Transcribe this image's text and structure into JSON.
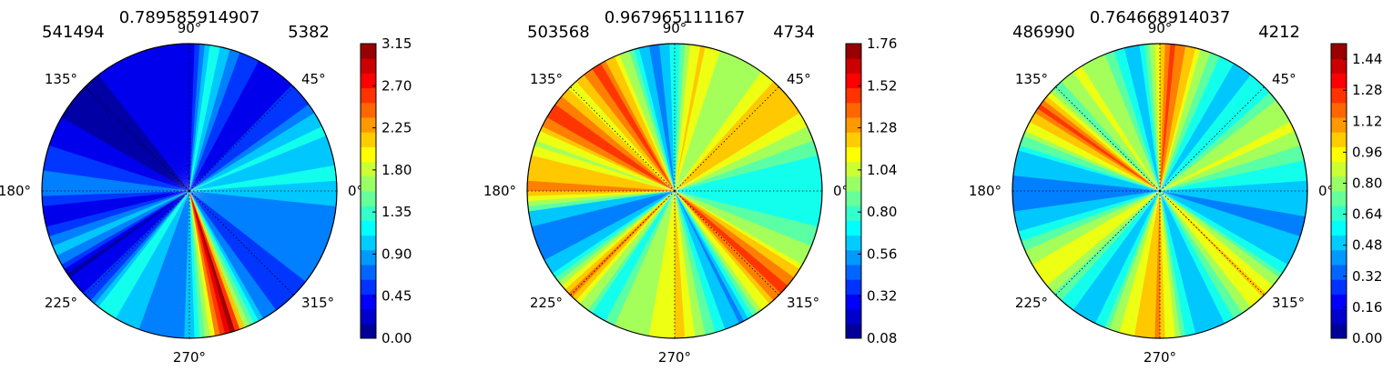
{
  "colors": {
    "jet_colormap": [
      "#00007f",
      "#0000ff",
      "#007fff",
      "#00ffff",
      "#7fff7f",
      "#ffff00",
      "#ff7f00",
      "#ff0000",
      "#7f0000"
    ],
    "grid_line": "#000000",
    "outline": "#000000"
  },
  "chart_data": [
    {
      "type": "polar-contour",
      "title": "0.789585914907",
      "left_label": "541494",
      "right_label": "5382",
      "angle_labels": [
        "0°",
        "45°",
        "90°",
        "135°",
        "180°",
        "225°",
        "270°",
        "315°"
      ],
      "colorbar": {
        "min": 0.0,
        "max": 3.15,
        "tick_labels": [
          "0.00",
          "0.45",
          "0.90",
          "1.35",
          "1.80",
          "2.25",
          "2.70",
          "3.15"
        ]
      },
      "angular_profile_deg": [
        {
          "angle": 0,
          "value": 1.05
        },
        {
          "angle": 8,
          "value": 1.2
        },
        {
          "angle": 15,
          "value": 0.95
        },
        {
          "angle": 25,
          "value": 1.2
        },
        {
          "angle": 35,
          "value": 0.7
        },
        {
          "angle": 45,
          "value": 0.45
        },
        {
          "angle": 58,
          "value": 0.35
        },
        {
          "angle": 72,
          "value": 0.7
        },
        {
          "angle": 80,
          "value": 1.35
        },
        {
          "angle": 86,
          "value": 0.6
        },
        {
          "angle": 90,
          "value": 0.25
        },
        {
          "angle": 100,
          "value": 0.45
        },
        {
          "angle": 110,
          "value": 0.35
        },
        {
          "angle": 125,
          "value": 0.25
        },
        {
          "angle": 140,
          "value": 0.1
        },
        {
          "angle": 155,
          "value": 0.3
        },
        {
          "angle": 170,
          "value": 0.6
        },
        {
          "angle": 180,
          "value": 0.85
        },
        {
          "angle": 190,
          "value": 0.25
        },
        {
          "angle": 198,
          "value": 0.7
        },
        {
          "angle": 205,
          "value": 1.0
        },
        {
          "angle": 215,
          "value": 0.2
        },
        {
          "angle": 225,
          "value": 0.45
        },
        {
          "angle": 235,
          "value": 1.3
        },
        {
          "angle": 245,
          "value": 1.0
        },
        {
          "angle": 255,
          "value": 0.8
        },
        {
          "angle": 265,
          "value": 0.7
        },
        {
          "angle": 272,
          "value": 1.1
        },
        {
          "angle": 282,
          "value": 2.4
        },
        {
          "angle": 287,
          "value": 3.1
        },
        {
          "angle": 292,
          "value": 1.9
        },
        {
          "angle": 300,
          "value": 0.8
        },
        {
          "angle": 315,
          "value": 0.5
        },
        {
          "angle": 330,
          "value": 0.9
        },
        {
          "angle": 345,
          "value": 0.7
        }
      ]
    },
    {
      "type": "polar-contour",
      "title": "0.967965111167",
      "left_label": "503568",
      "right_label": "4734",
      "angle_labels": [
        "0°",
        "45°",
        "90°",
        "135°",
        "180°",
        "225°",
        "270°",
        "315°"
      ],
      "colorbar": {
        "min": 0.08,
        "max": 1.76,
        "tick_labels": [
          "0.08",
          "0.32",
          "0.56",
          "0.80",
          "1.04",
          "1.28",
          "1.52",
          "1.76"
        ]
      },
      "angular_profile_deg": [
        {
          "angle": 0,
          "value": 0.7
        },
        {
          "angle": 12,
          "value": 0.75
        },
        {
          "angle": 25,
          "value": 1.0
        },
        {
          "angle": 35,
          "value": 1.25
        },
        {
          "angle": 45,
          "value": 1.2
        },
        {
          "angle": 55,
          "value": 1.0
        },
        {
          "angle": 68,
          "value": 0.95
        },
        {
          "angle": 80,
          "value": 1.2
        },
        {
          "angle": 90,
          "value": 0.75
        },
        {
          "angle": 98,
          "value": 0.45
        },
        {
          "angle": 110,
          "value": 1.0
        },
        {
          "angle": 122,
          "value": 1.45
        },
        {
          "angle": 135,
          "value": 1.1
        },
        {
          "angle": 148,
          "value": 1.5
        },
        {
          "angle": 160,
          "value": 1.0
        },
        {
          "angle": 170,
          "value": 1.25
        },
        {
          "angle": 180,
          "value": 1.3
        },
        {
          "angle": 190,
          "value": 0.6
        },
        {
          "angle": 200,
          "value": 0.5
        },
        {
          "angle": 212,
          "value": 0.6
        },
        {
          "angle": 225,
          "value": 1.3
        },
        {
          "angle": 238,
          "value": 0.7
        },
        {
          "angle": 250,
          "value": 1.0
        },
        {
          "angle": 262,
          "value": 1.05
        },
        {
          "angle": 272,
          "value": 1.2
        },
        {
          "angle": 285,
          "value": 0.8
        },
        {
          "angle": 298,
          "value": 0.5
        },
        {
          "angle": 308,
          "value": 1.1
        },
        {
          "angle": 318,
          "value": 1.5
        },
        {
          "angle": 330,
          "value": 1.05
        },
        {
          "angle": 345,
          "value": 0.8
        }
      ]
    },
    {
      "type": "polar-contour",
      "title": "0.764668914037",
      "left_label": "486990",
      "right_label": "4212",
      "angle_labels": [
        "0°",
        "45°",
        "90°",
        "135°",
        "180°",
        "225°",
        "270°",
        "315°"
      ],
      "colorbar": {
        "min": 0.0,
        "max": 1.52,
        "tick_labels": [
          "0.00",
          "0.16",
          "0.32",
          "0.48",
          "0.64",
          "0.80",
          "0.96",
          "1.12",
          "1.28",
          "1.44"
        ]
      },
      "angular_profile_deg": [
        {
          "angle": 0,
          "value": 0.5
        },
        {
          "angle": 12,
          "value": 0.65
        },
        {
          "angle": 25,
          "value": 0.9
        },
        {
          "angle": 35,
          "value": 0.8
        },
        {
          "angle": 45,
          "value": 0.6
        },
        {
          "angle": 58,
          "value": 0.5
        },
        {
          "angle": 70,
          "value": 0.75
        },
        {
          "angle": 80,
          "value": 1.1
        },
        {
          "angle": 86,
          "value": 1.25
        },
        {
          "angle": 92,
          "value": 0.9
        },
        {
          "angle": 100,
          "value": 0.45
        },
        {
          "angle": 112,
          "value": 0.75
        },
        {
          "angle": 125,
          "value": 0.9
        },
        {
          "angle": 135,
          "value": 0.7
        },
        {
          "angle": 145,
          "value": 1.2
        },
        {
          "angle": 155,
          "value": 0.9
        },
        {
          "angle": 165,
          "value": 0.5
        },
        {
          "angle": 180,
          "value": 0.4
        },
        {
          "angle": 192,
          "value": 0.45
        },
        {
          "angle": 205,
          "value": 0.8
        },
        {
          "angle": 218,
          "value": 0.95
        },
        {
          "angle": 230,
          "value": 0.6
        },
        {
          "angle": 242,
          "value": 0.45
        },
        {
          "angle": 255,
          "value": 0.9
        },
        {
          "angle": 270,
          "value": 1.1
        },
        {
          "angle": 282,
          "value": 0.55
        },
        {
          "angle": 295,
          "value": 0.5
        },
        {
          "angle": 305,
          "value": 0.8
        },
        {
          "angle": 315,
          "value": 1.0
        },
        {
          "angle": 330,
          "value": 0.55
        },
        {
          "angle": 345,
          "value": 0.4
        }
      ]
    }
  ]
}
